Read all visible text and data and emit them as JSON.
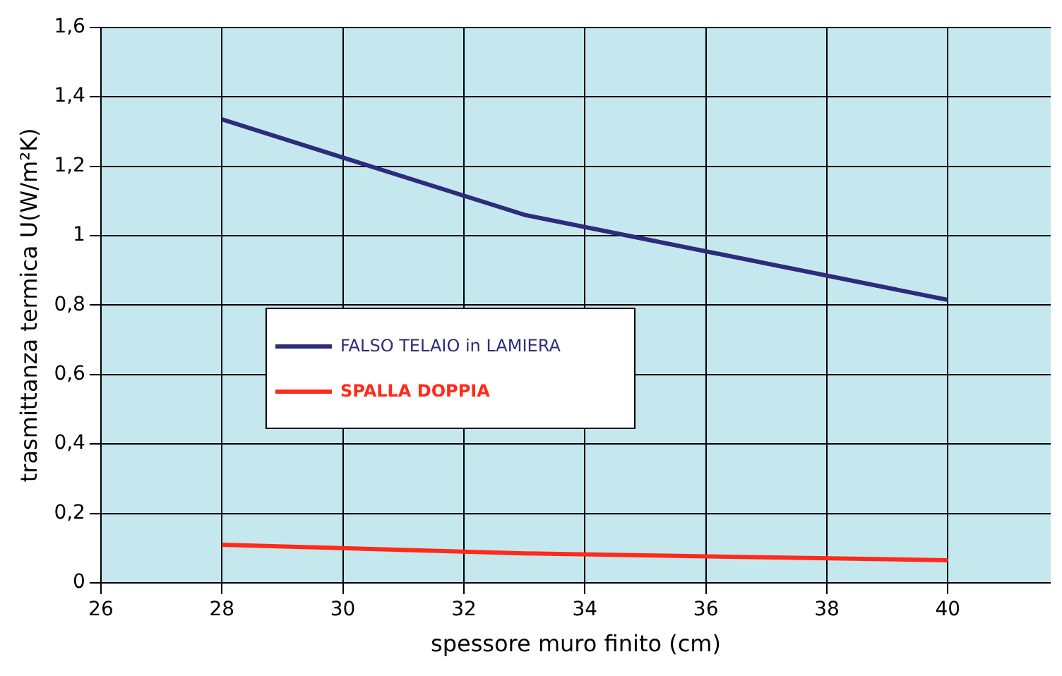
{
  "chart_data": {
    "type": "line",
    "xlabel": "spessore muro finito (cm)",
    "ylabel": "trasmittanza termica U(W/m²K)",
    "x": [
      28,
      33,
      40
    ],
    "series": [
      {
        "name": "FALSO TELAIO in LAMIERA",
        "color": "#2e2c7a",
        "values": [
          1.335,
          1.06,
          0.815
        ]
      },
      {
        "name": "SPALLA DOPPIA",
        "color": "#ff2a1a",
        "values": [
          0.11,
          0.085,
          0.065
        ]
      }
    ],
    "xlim": [
      26,
      41.7
    ],
    "xticks": [
      26,
      28,
      30,
      32,
      34,
      36,
      38,
      40
    ],
    "ylim": [
      0,
      1.6
    ],
    "yticks": [
      0,
      {
        "value": 0.2,
        "label": "0,2"
      },
      {
        "value": 0.4,
        "label": "0,4"
      },
      {
        "value": 0.6,
        "label": "0,6"
      },
      {
        "value": 0.8,
        "label": "0,8"
      },
      1,
      {
        "value": 1.2,
        "label": "1,2"
      },
      {
        "value": 1.4,
        "label": "1,4"
      },
      {
        "value": 1.6,
        "label": "1,6"
      }
    ],
    "grid": true,
    "legend": "center left",
    "marker": "none",
    "line_style": "solid"
  }
}
